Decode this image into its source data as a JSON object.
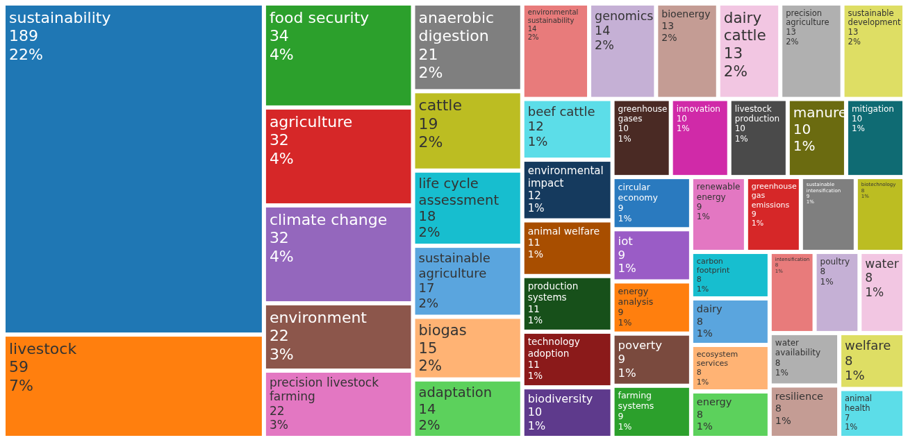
{
  "chart_data": {
    "type": "other",
    "data_labels": true,
    "categories": [
      "sustainability",
      "livestock",
      "food security",
      "agriculture",
      "climate change",
      "environment",
      "precision livestock farming",
      "anaerobic digestion",
      "cattle",
      "life cycle assessment",
      "sustainable agriculture",
      "biogas",
      "adaptation",
      "environmental sustainability",
      "genomics",
      "bioenergy",
      "dairy cattle",
      "precision agriculture",
      "sustainable development",
      "beef cattle",
      "environmental impact",
      "animal welfare",
      "production systems",
      "technology adoption",
      "biodiversity",
      "greenhouse gases",
      "innovation",
      "livestock production",
      "manure",
      "mitigation",
      "circular economy",
      "iot",
      "energy analysis",
      "poverty",
      "farming systems",
      "renewable energy",
      "greenhouse gas emissions",
      "sustainable intensification",
      "biotechnology",
      "carbon footprint",
      "dairy",
      "ecosystem services",
      "energy",
      "intensification",
      "poultry",
      "water",
      "water availability",
      "resilience",
      "welfare",
      "animal health"
    ],
    "values": [
      189,
      59,
      34,
      32,
      32,
      22,
      22,
      21,
      19,
      18,
      17,
      15,
      14,
      14,
      14,
      13,
      13,
      13,
      13,
      12,
      12,
      11,
      11,
      11,
      10,
      10,
      10,
      10,
      10,
      10,
      9,
      9,
      9,
      9,
      9,
      9,
      9,
      9,
      8,
      8,
      8,
      8,
      8,
      8,
      8,
      8,
      8,
      8,
      8,
      7
    ],
    "annotations": [
      {
        "text": "22%",
        "x": "sustainability"
      },
      {
        "text": "7%",
        "x": "livestock"
      },
      {
        "text": "4%",
        "x": "food security"
      },
      {
        "text": "4%",
        "x": "agriculture"
      },
      {
        "text": "4%",
        "x": "climate change"
      },
      {
        "text": "3%",
        "x": "environment"
      },
      {
        "text": "3%",
        "x": "precision livestock farming"
      },
      {
        "text": "2%",
        "x": "anaerobic digestion"
      },
      {
        "text": "2%",
        "x": "cattle"
      },
      {
        "text": "2%",
        "x": "life cycle assessment"
      },
      {
        "text": "2%",
        "x": "sustainable agriculture"
      },
      {
        "text": "2%",
        "x": "biogas"
      },
      {
        "text": "2%",
        "x": "adaptation"
      },
      {
        "text": "2%",
        "x": "environmental sustainability"
      },
      {
        "text": "2%",
        "x": "genomics"
      },
      {
        "text": "2%",
        "x": "bioenergy"
      },
      {
        "text": "2%",
        "x": "dairy cattle"
      },
      {
        "text": "2%",
        "x": "precision agriculture"
      },
      {
        "text": "2%",
        "x": "sustainable development"
      },
      {
        "text": "1%",
        "x": "beef cattle"
      },
      {
        "text": "1%",
        "x": "environmental impact"
      },
      {
        "text": "1%",
        "x": "animal welfare"
      },
      {
        "text": "1%",
        "x": "production systems"
      },
      {
        "text": "1%",
        "x": "technology adoption"
      },
      {
        "text": "1%",
        "x": "biodiversity"
      },
      {
        "text": "1%",
        "x": "greenhouse gases"
      },
      {
        "text": "1%",
        "x": "innovation"
      },
      {
        "text": "1%",
        "x": "livestock production"
      },
      {
        "text": "1%",
        "x": "manure"
      },
      {
        "text": "1%",
        "x": "mitigation"
      },
      {
        "text": "1%",
        "x": "circular economy"
      },
      {
        "text": "1%",
        "x": "iot"
      },
      {
        "text": "1%",
        "x": "energy analysis"
      },
      {
        "text": "1%",
        "x": "poverty"
      },
      {
        "text": "1%",
        "x": "farming systems"
      },
      {
        "text": "1%",
        "x": "renewable energy"
      },
      {
        "text": "1%",
        "x": "greenhouse gas emissions"
      },
      {
        "text": "1%",
        "x": "sustainable intensification"
      },
      {
        "text": "1%",
        "x": "biotechnology"
      },
      {
        "text": "1%",
        "x": "carbon footprint"
      },
      {
        "text": "1%",
        "x": "dairy"
      },
      {
        "text": "1%",
        "x": "ecosystem services"
      },
      {
        "text": "1%",
        "x": "energy"
      },
      {
        "text": "1%",
        "x": "intensification"
      },
      {
        "text": "1%",
        "x": "poultry"
      },
      {
        "text": "1%",
        "x": "water"
      },
      {
        "text": "1%",
        "x": "water availability"
      },
      {
        "text": "1%",
        "x": "resilience"
      },
      {
        "text": "1%",
        "x": "welfare"
      },
      {
        "text": "1%",
        "x": "animal health"
      }
    ],
    "colors": [
      "#1f77b4",
      "#ff7f0e",
      "#2ca02c",
      "#d62728",
      "#9467bd",
      "#8c564b",
      "#e377c2",
      "#7f7f7f",
      "#bcbd22",
      "#17becf",
      "#5aa5de",
      "#ffb374",
      "#5cd15c",
      "#e87b7b",
      "#c5b0d5",
      "#c49c94",
      "#f2c6e2",
      "#b0b0b0",
      "#dede64",
      "#5cdde8",
      "#153a5e",
      "#a84e00",
      "#17501a",
      "#8b1a1a",
      "#5e3a8c",
      "#4a2a24",
      "#d02aa8",
      "#4a4a4a",
      "#6b6b10",
      "#0f6b73",
      "#2a7abf",
      "#9a5cc6",
      "#ff7f0e",
      "#7a4a3e",
      "#2ca02c",
      "#e377c2",
      "#d62728",
      "#7f7f7f",
      "#bcbd22",
      "#17becf",
      "#5aa5de",
      "#ffb374",
      "#5cd15c",
      "#e87b7b",
      "#c5b0d5",
      "#f2c6e2",
      "#b0b0b0",
      "#c49c94",
      "#dede64",
      "#5cdde8"
    ]
  }
}
